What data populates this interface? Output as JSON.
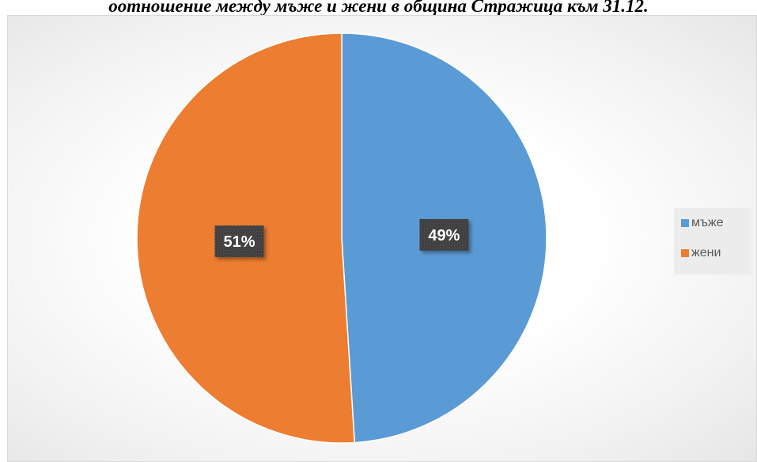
{
  "chart_data": {
    "type": "pie",
    "title": "оотношение между мъже и жени в община Стражица към 31.12.",
    "categories": [
      "мъже",
      "жени"
    ],
    "values": [
      49,
      51
    ],
    "data_labels": [
      "49%",
      "51%"
    ],
    "colors": [
      "#5b9bd5",
      "#ed7d31"
    ],
    "legend_position": "right"
  }
}
